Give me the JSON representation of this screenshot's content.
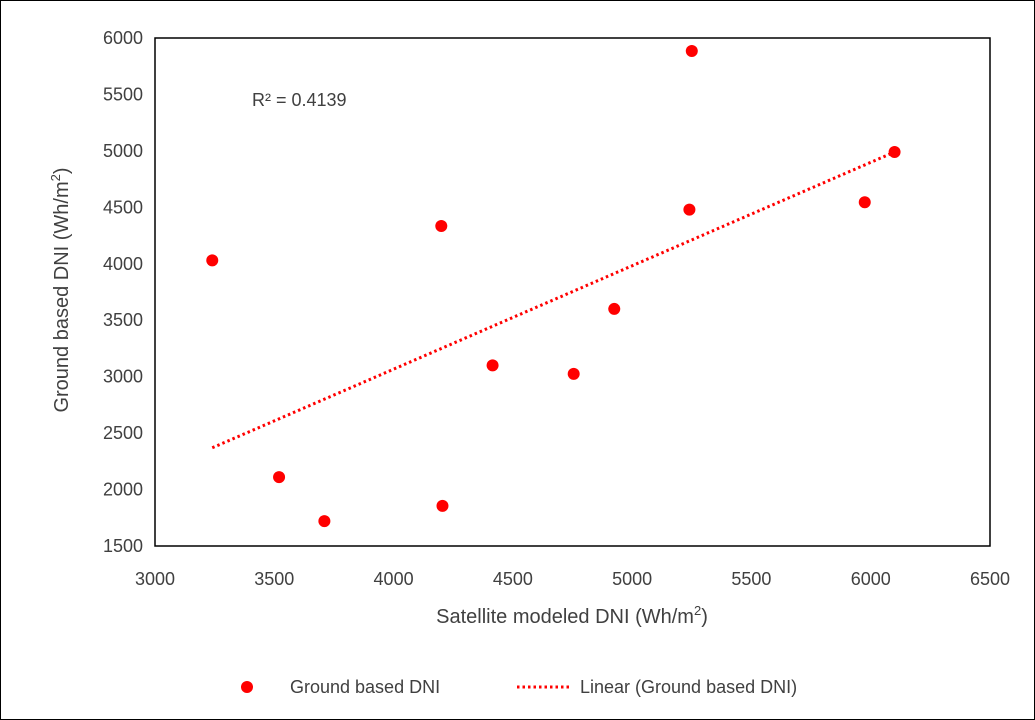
{
  "chart_data": {
    "type": "scatter",
    "title": "",
    "xlabel": "Satellite modeled DNI (Wh/m",
    "xlabel_sup": "2",
    "xlabel_end": ")",
    "ylabel": "Ground based DNI (Wh/m",
    "ylabel_sup": "2",
    "ylabel_end": ")",
    "xlim": [
      3000,
      6500
    ],
    "ylim": [
      1500,
      6000
    ],
    "xticks": [
      3000,
      3500,
      4000,
      4500,
      5000,
      5500,
      6000,
      6500
    ],
    "yticks": [
      1500,
      2000,
      2500,
      3000,
      3500,
      4000,
      4500,
      5000,
      5500,
      6000
    ],
    "grid": false,
    "legend_position": "bottom",
    "series": [
      {
        "name": "Ground based DNI",
        "color": "#ff0000",
        "marker": "circle",
        "points": [
          {
            "x": 3240,
            "y": 4030
          },
          {
            "x": 3520,
            "y": 2110
          },
          {
            "x": 3710,
            "y": 1720
          },
          {
            "x": 4200,
            "y": 4335
          },
          {
            "x": 4205,
            "y": 1855
          },
          {
            "x": 4415,
            "y": 3100
          },
          {
            "x": 4755,
            "y": 3025
          },
          {
            "x": 4925,
            "y": 3600
          },
          {
            "x": 5240,
            "y": 4480
          },
          {
            "x": 5250,
            "y": 5885
          },
          {
            "x": 5975,
            "y": 4545
          },
          {
            "x": 6100,
            "y": 4990
          }
        ]
      }
    ],
    "trendline": {
      "name": "Linear (Ground based DNI)",
      "type": "linear",
      "style": "dotted",
      "color": "#ff0000",
      "x_start": 3240,
      "y_start": 2370,
      "x_end": 6100,
      "y_end": 4990
    },
    "annotation": "R² = 0.4139"
  }
}
